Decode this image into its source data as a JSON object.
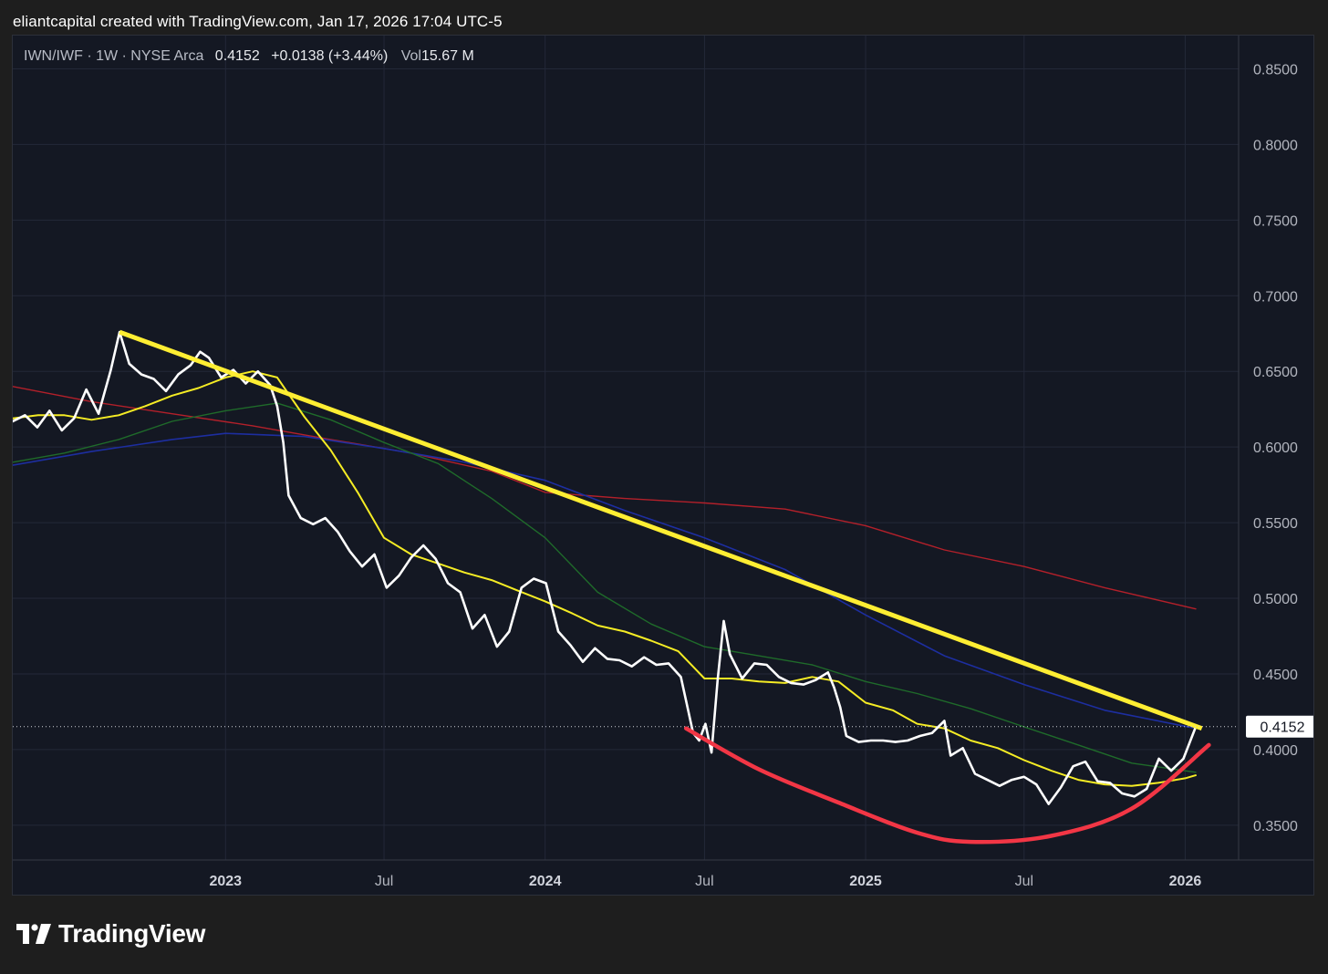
{
  "header": {
    "credit": "eliantcapital created with TradingView.com, Jan 17, 2026 17:04 UTC-5"
  },
  "legend": {
    "symbol": "IWN/IWF · 1W · NYSE Arca",
    "last": "0.4152",
    "change": "+0.0138 (+3.44%)",
    "vol_label": "Vol",
    "vol_value": "15.67 M"
  },
  "footer": {
    "brand": "TradingView",
    "icon": "tradingview-logo-icon"
  },
  "colors": {
    "background": "#141823",
    "price": "#ffffff",
    "ma_yellow": "#f5ec24",
    "ma_green": "#1f6b2a",
    "ma_blue": "#1d2ea0",
    "ma_red": "#b3202a",
    "trendline": "#ffee33",
    "arc": "#f23645"
  },
  "chart_data": {
    "type": "line",
    "title": "IWN/IWF · 1W · NYSE Arca",
    "xlabel": "",
    "ylabel": "",
    "ylim": [
      0.327,
      0.872
    ],
    "xlim": [
      "2022-05-03",
      "2026-03-03"
    ],
    "grid": true,
    "y_ticks": [
      "0.8500",
      "0.8000",
      "0.7500",
      "0.7000",
      "0.6500",
      "0.6000",
      "0.5500",
      "0.5000",
      "0.4500",
      "0.4000",
      "0.3500"
    ],
    "x_ticks": [
      {
        "date": "2023-01-01",
        "label": "2023",
        "bold": true
      },
      {
        "date": "2023-07-01",
        "label": "Jul",
        "bold": false
      },
      {
        "date": "2024-01-01",
        "label": "2024",
        "bold": true
      },
      {
        "date": "2024-07-01",
        "label": "Jul",
        "bold": false
      },
      {
        "date": "2025-01-01",
        "label": "2025",
        "bold": true
      },
      {
        "date": "2025-07-01",
        "label": "Jul",
        "bold": false
      },
      {
        "date": "2026-01-01",
        "label": "2026",
        "bold": true
      }
    ],
    "last_price_label": "0.4152",
    "series": [
      {
        "color": "#ffffff",
        "width": 2.6,
        "points": [
          [
            "2022-05-03",
            0.617
          ],
          [
            "2022-05-17",
            0.621
          ],
          [
            "2022-05-31",
            0.613
          ],
          [
            "2022-06-14",
            0.624
          ],
          [
            "2022-06-28",
            0.611
          ],
          [
            "2022-07-12",
            0.619
          ],
          [
            "2022-07-26",
            0.638
          ],
          [
            "2022-08-09",
            0.622
          ],
          [
            "2022-08-23",
            0.651
          ],
          [
            "2022-09-02",
            0.676
          ],
          [
            "2022-09-13",
            0.655
          ],
          [
            "2022-09-27",
            0.648
          ],
          [
            "2022-10-11",
            0.645
          ],
          [
            "2022-10-25",
            0.637
          ],
          [
            "2022-11-08",
            0.648
          ],
          [
            "2022-11-22",
            0.654
          ],
          [
            "2022-12-03",
            0.663
          ],
          [
            "2022-12-13",
            0.659
          ],
          [
            "2022-12-27",
            0.646
          ],
          [
            "2023-01-10",
            0.651
          ],
          [
            "2023-01-24",
            0.642
          ],
          [
            "2023-02-07",
            0.65
          ],
          [
            "2023-02-21",
            0.641
          ],
          [
            "2023-03-01",
            0.627
          ],
          [
            "2023-03-08",
            0.603
          ],
          [
            "2023-03-14",
            0.568
          ],
          [
            "2023-03-28",
            0.553
          ],
          [
            "2023-04-11",
            0.549
          ],
          [
            "2023-04-25",
            0.553
          ],
          [
            "2023-05-09",
            0.544
          ],
          [
            "2023-05-23",
            0.531
          ],
          [
            "2023-06-06",
            0.521
          ],
          [
            "2023-06-20",
            0.529
          ],
          [
            "2023-07-04",
            0.507
          ],
          [
            "2023-07-18",
            0.515
          ],
          [
            "2023-08-01",
            0.527
          ],
          [
            "2023-08-15",
            0.535
          ],
          [
            "2023-08-29",
            0.526
          ],
          [
            "2023-09-12",
            0.51
          ],
          [
            "2023-09-26",
            0.504
          ],
          [
            "2023-10-10",
            0.48
          ],
          [
            "2023-10-24",
            0.489
          ],
          [
            "2023-11-07",
            0.468
          ],
          [
            "2023-11-21",
            0.478
          ],
          [
            "2023-12-05",
            0.507
          ],
          [
            "2023-12-19",
            0.513
          ],
          [
            "2024-01-02",
            0.51
          ],
          [
            "2024-01-16",
            0.478
          ],
          [
            "2024-01-30",
            0.469
          ],
          [
            "2024-02-13",
            0.458
          ],
          [
            "2024-02-27",
            0.467
          ],
          [
            "2024-03-12",
            0.46
          ],
          [
            "2024-03-26",
            0.459
          ],
          [
            "2024-04-09",
            0.455
          ],
          [
            "2024-04-23",
            0.461
          ],
          [
            "2024-05-07",
            0.456
          ],
          [
            "2024-05-21",
            0.457
          ],
          [
            "2024-06-04",
            0.448
          ],
          [
            "2024-06-18",
            0.411
          ],
          [
            "2024-06-25",
            0.406
          ],
          [
            "2024-07-02",
            0.417
          ],
          [
            "2024-07-09",
            0.398
          ],
          [
            "2024-07-16",
            0.446
          ],
          [
            "2024-07-23",
            0.485
          ],
          [
            "2024-07-30",
            0.463
          ],
          [
            "2024-08-13",
            0.447
          ],
          [
            "2024-08-27",
            0.457
          ],
          [
            "2024-09-10",
            0.456
          ],
          [
            "2024-09-24",
            0.448
          ],
          [
            "2024-10-08",
            0.444
          ],
          [
            "2024-10-22",
            0.443
          ],
          [
            "2024-11-05",
            0.446
          ],
          [
            "2024-11-19",
            0.451
          ],
          [
            "2024-11-26",
            0.441
          ],
          [
            "2024-12-03",
            0.428
          ],
          [
            "2024-12-10",
            0.409
          ],
          [
            "2024-12-24",
            0.405
          ],
          [
            "2025-01-07",
            0.406
          ],
          [
            "2025-01-21",
            0.406
          ],
          [
            "2025-02-04",
            0.405
          ],
          [
            "2025-02-18",
            0.406
          ],
          [
            "2025-03-04",
            0.409
          ],
          [
            "2025-03-18",
            0.411
          ],
          [
            "2025-04-01",
            0.419
          ],
          [
            "2025-04-08",
            0.396
          ],
          [
            "2025-04-22",
            0.401
          ],
          [
            "2025-05-06",
            0.384
          ],
          [
            "2025-05-20",
            0.38
          ],
          [
            "2025-06-03",
            0.376
          ],
          [
            "2025-06-17",
            0.38
          ],
          [
            "2025-07-01",
            0.382
          ],
          [
            "2025-07-15",
            0.377
          ],
          [
            "2025-07-29",
            0.364
          ],
          [
            "2025-08-12",
            0.375
          ],
          [
            "2025-08-26",
            0.389
          ],
          [
            "2025-09-09",
            0.392
          ],
          [
            "2025-09-23",
            0.379
          ],
          [
            "2025-10-07",
            0.378
          ],
          [
            "2025-10-21",
            0.371
          ],
          [
            "2025-11-04",
            0.369
          ],
          [
            "2025-11-18",
            0.374
          ],
          [
            "2025-12-02",
            0.394
          ],
          [
            "2025-12-16",
            0.386
          ],
          [
            "2025-12-30",
            0.394
          ],
          [
            "2026-01-13",
            0.415
          ]
        ]
      },
      {
        "color": "#f5ec24",
        "width": 2,
        "points": [
          [
            "2022-05-03",
            0.619
          ],
          [
            "2022-06-01",
            0.621
          ],
          [
            "2022-07-01",
            0.621
          ],
          [
            "2022-08-01",
            0.618
          ],
          [
            "2022-09-01",
            0.621
          ],
          [
            "2022-10-01",
            0.627
          ],
          [
            "2022-11-01",
            0.634
          ],
          [
            "2022-12-01",
            0.639
          ],
          [
            "2023-01-01",
            0.646
          ],
          [
            "2023-02-01",
            0.65
          ],
          [
            "2023-03-01",
            0.646
          ],
          [
            "2023-04-01",
            0.62
          ],
          [
            "2023-05-01",
            0.598
          ],
          [
            "2023-06-01",
            0.57
          ],
          [
            "2023-07-01",
            0.54
          ],
          [
            "2023-08-01",
            0.529
          ],
          [
            "2023-09-01",
            0.523
          ],
          [
            "2023-10-01",
            0.517
          ],
          [
            "2023-11-01",
            0.512
          ],
          [
            "2023-12-01",
            0.505
          ],
          [
            "2024-01-01",
            0.498
          ],
          [
            "2024-02-01",
            0.49
          ],
          [
            "2024-03-01",
            0.482
          ],
          [
            "2024-04-01",
            0.478
          ],
          [
            "2024-05-01",
            0.472
          ],
          [
            "2024-06-01",
            0.465
          ],
          [
            "2024-07-01",
            0.447
          ],
          [
            "2024-08-01",
            0.447
          ],
          [
            "2024-09-01",
            0.445
          ],
          [
            "2024-10-01",
            0.444
          ],
          [
            "2024-11-01",
            0.448
          ],
          [
            "2024-12-01",
            0.445
          ],
          [
            "2025-01-01",
            0.431
          ],
          [
            "2025-02-01",
            0.426
          ],
          [
            "2025-03-01",
            0.417
          ],
          [
            "2025-04-01",
            0.414
          ],
          [
            "2025-05-01",
            0.406
          ],
          [
            "2025-06-01",
            0.401
          ],
          [
            "2025-07-01",
            0.393
          ],
          [
            "2025-08-01",
            0.386
          ],
          [
            "2025-09-01",
            0.38
          ],
          [
            "2025-10-01",
            0.377
          ],
          [
            "2025-11-01",
            0.376
          ],
          [
            "2025-12-01",
            0.378
          ],
          [
            "2026-01-01",
            0.381
          ],
          [
            "2026-01-13",
            0.383
          ]
        ]
      },
      {
        "color": "#1f6b2a",
        "width": 1.4,
        "points": [
          [
            "2022-05-03",
            0.59
          ],
          [
            "2022-07-01",
            0.596
          ],
          [
            "2022-09-01",
            0.605
          ],
          [
            "2022-11-01",
            0.617
          ],
          [
            "2023-01-01",
            0.624
          ],
          [
            "2023-03-01",
            0.629
          ],
          [
            "2023-05-01",
            0.618
          ],
          [
            "2023-07-01",
            0.603
          ],
          [
            "2023-09-01",
            0.589
          ],
          [
            "2023-11-01",
            0.566
          ],
          [
            "2024-01-01",
            0.54
          ],
          [
            "2024-03-01",
            0.504
          ],
          [
            "2024-05-01",
            0.483
          ],
          [
            "2024-07-01",
            0.468
          ],
          [
            "2024-09-01",
            0.462
          ],
          [
            "2024-11-01",
            0.456
          ],
          [
            "2025-01-01",
            0.445
          ],
          [
            "2025-03-01",
            0.437
          ],
          [
            "2025-05-01",
            0.427
          ],
          [
            "2025-07-01",
            0.415
          ],
          [
            "2025-09-01",
            0.403
          ],
          [
            "2025-11-01",
            0.391
          ],
          [
            "2026-01-13",
            0.385
          ]
        ]
      },
      {
        "color": "#1d2ea0",
        "width": 1.6,
        "points": [
          [
            "2022-05-03",
            0.588
          ],
          [
            "2022-08-01",
            0.597
          ],
          [
            "2022-11-01",
            0.605
          ],
          [
            "2023-01-01",
            0.609
          ],
          [
            "2023-04-01",
            0.607
          ],
          [
            "2023-07-01",
            0.599
          ],
          [
            "2023-10-01",
            0.59
          ],
          [
            "2024-01-01",
            0.578
          ],
          [
            "2024-04-01",
            0.558
          ],
          [
            "2024-07-01",
            0.54
          ],
          [
            "2024-10-01",
            0.519
          ],
          [
            "2025-01-01",
            0.489
          ],
          [
            "2025-04-01",
            0.462
          ],
          [
            "2025-07-01",
            0.443
          ],
          [
            "2025-10-01",
            0.426
          ],
          [
            "2026-01-13",
            0.414
          ]
        ]
      },
      {
        "color": "#b3202a",
        "width": 1.4,
        "points": [
          [
            "2022-05-03",
            0.64
          ],
          [
            "2022-08-01",
            0.63
          ],
          [
            "2022-11-01",
            0.622
          ],
          [
            "2023-02-01",
            0.614
          ],
          [
            "2023-05-01",
            0.605
          ],
          [
            "2023-08-01",
            0.596
          ],
          [
            "2023-11-01",
            0.584
          ],
          [
            "2024-01-01",
            0.57
          ],
          [
            "2024-04-01",
            0.566
          ],
          [
            "2024-07-01",
            0.563
          ],
          [
            "2024-10-01",
            0.559
          ],
          [
            "2025-01-01",
            0.548
          ],
          [
            "2025-04-01",
            0.532
          ],
          [
            "2025-07-01",
            0.521
          ],
          [
            "2025-10-01",
            0.507
          ],
          [
            "2026-01-13",
            0.493
          ]
        ]
      }
    ],
    "annotations": [
      {
        "type": "trendline",
        "color": "#ffee33",
        "width": 5,
        "points": [
          [
            "2022-09-02",
            0.676
          ],
          [
            "2026-01-20",
            0.414
          ]
        ]
      },
      {
        "type": "arc",
        "color": "#f23645",
        "width": 4.5,
        "points": [
          [
            "2024-06-10",
            0.414
          ],
          [
            "2024-09-01",
            0.387
          ],
          [
            "2024-12-01",
            0.365
          ],
          [
            "2025-03-01",
            0.345
          ],
          [
            "2025-05-01",
            0.339
          ],
          [
            "2025-08-01",
            0.343
          ],
          [
            "2025-11-01",
            0.361
          ],
          [
            "2026-01-28",
            0.403
          ]
        ]
      }
    ]
  }
}
